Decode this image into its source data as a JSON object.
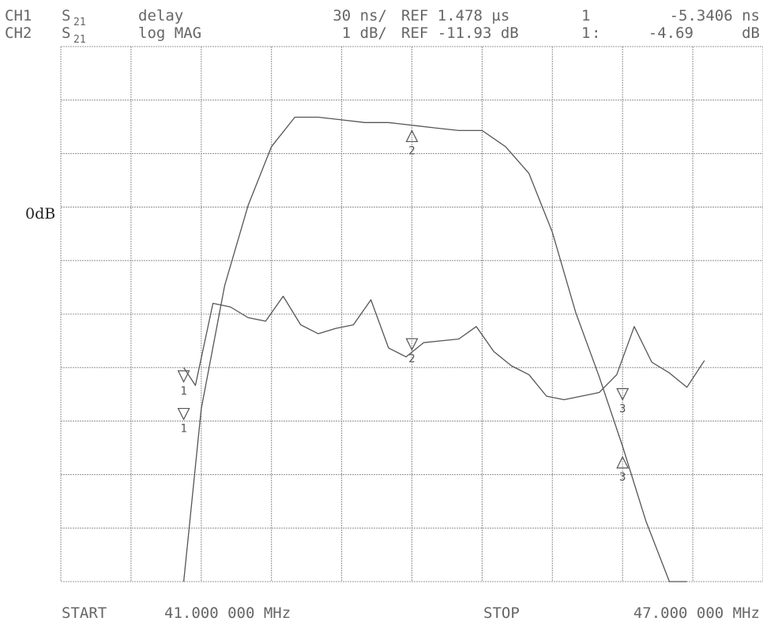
{
  "header": {
    "ch1": {
      "label": "CH1",
      "param": "S",
      "param_sub": "21",
      "format": "delay",
      "scale": "30 ns/",
      "ref": "REF 1.478 µs",
      "marker_index": "1",
      "marker_value": "-5.3406 ns"
    },
    "ch2": {
      "label": "CH2",
      "param": "S",
      "param_sub": "21",
      "format": "log MAG",
      "scale": "1 dB/",
      "ref": "REF -11.93 dB",
      "marker_index": "1",
      "marker_sep": ":",
      "marker_value": "-4.69",
      "marker_unit": "dB"
    }
  },
  "footer": {
    "start_label": "START",
    "start_value": "41.000 000 MHz",
    "stop_label": "STOP",
    "stop_value": "47.000 000 MHz"
  },
  "annotation": {
    "zero_db": "0dB"
  },
  "chart_data": {
    "type": "line",
    "xlim": [
      41,
      47
    ],
    "grid": {
      "x_divisions": 10,
      "y_divisions": 10,
      "visible": true
    },
    "series": [
      {
        "key": "log_mag",
        "y_unit": "dB",
        "ylim": [
          -16.93,
          -6.93
        ],
        "x": [
          42.05,
          42.2,
          42.4,
          42.6,
          42.8,
          43.0,
          43.2,
          43.4,
          43.6,
          43.8,
          44.0,
          44.2,
          44.4,
          44.6,
          44.8,
          45.0,
          45.2,
          45.4,
          45.6,
          45.8,
          46.0,
          46.2,
          46.35
        ],
        "y": [
          -16.93,
          -13.7,
          -11.4,
          -9.9,
          -8.8,
          -8.25,
          -8.25,
          -8.3,
          -8.35,
          -8.35,
          -8.4,
          -8.45,
          -8.5,
          -8.5,
          -8.8,
          -9.3,
          -10.4,
          -11.9,
          -13.1,
          -14.4,
          -15.8,
          -16.93,
          -16.93
        ]
      },
      {
        "key": "delay",
        "y_unit": "ns",
        "ylim": [
          1328,
          1628
        ],
        "x": [
          42.05,
          42.15,
          42.3,
          42.45,
          42.6,
          42.75,
          42.9,
          43.05,
          43.2,
          43.35,
          43.5,
          43.65,
          43.8,
          43.95,
          44.1,
          44.25,
          44.4,
          44.55,
          44.7,
          44.85,
          45.0,
          45.15,
          45.3,
          45.45,
          45.6,
          45.75,
          45.9,
          46.05,
          46.2,
          46.35,
          46.5
        ],
        "y": [
          1448,
          1438,
          1484,
          1482,
          1476,
          1474,
          1488,
          1472,
          1467,
          1470,
          1472,
          1486,
          1459,
          1454,
          1462,
          1463,
          1464,
          1471,
          1457,
          1449,
          1444,
          1432,
          1430,
          1432,
          1434,
          1444,
          1471,
          1451,
          1445,
          1437,
          1452
        ]
      }
    ],
    "markers": [
      {
        "label": "1",
        "series": "log_mag",
        "x": 42.05,
        "y": -13.9,
        "shape": "triangle-down"
      },
      {
        "label": "2",
        "series": "log_mag",
        "x": 44.0,
        "y": -8.5,
        "shape": "triangle-up"
      },
      {
        "label": "3",
        "series": "log_mag",
        "x": 45.8,
        "y": -14.6,
        "shape": "triangle-up"
      },
      {
        "label": "1",
        "series": "delay",
        "x": 42.05,
        "y": 1440,
        "shape": "triangle-down"
      },
      {
        "label": "2",
        "series": "delay",
        "x": 44.0,
        "y": 1458,
        "shape": "triangle-down"
      },
      {
        "label": "3",
        "series": "delay",
        "x": 45.8,
        "y": 1430,
        "shape": "triangle-down"
      }
    ]
  }
}
